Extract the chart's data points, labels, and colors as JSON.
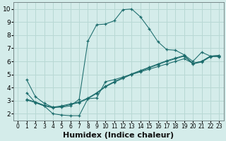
{
  "xlabel": "Humidex (Indice chaleur)",
  "bg_color": "#d4ecea",
  "grid_color": "#b8d8d4",
  "line_color": "#1a6b6b",
  "xlim": [
    -0.5,
    23.5
  ],
  "ylim": [
    1.5,
    10.5
  ],
  "xticks": [
    0,
    1,
    2,
    3,
    4,
    5,
    6,
    7,
    8,
    9,
    10,
    11,
    12,
    13,
    14,
    15,
    16,
    17,
    18,
    19,
    20,
    21,
    22,
    23
  ],
  "yticks": [
    2,
    3,
    4,
    5,
    6,
    7,
    8,
    9,
    10
  ],
  "line1_x": [
    1,
    2,
    3,
    4,
    5,
    6,
    7,
    8,
    9,
    10,
    11,
    12,
    13,
    14,
    15,
    16,
    17,
    18,
    19,
    20,
    21,
    22,
    23
  ],
  "line1_y": [
    4.6,
    3.3,
    2.8,
    2.5,
    2.5,
    2.6,
    3.1,
    7.55,
    8.8,
    8.85,
    9.1,
    9.95,
    10.0,
    9.4,
    8.5,
    7.5,
    6.9,
    6.85,
    6.5,
    6.0,
    6.7,
    6.4,
    6.35
  ],
  "line2_x": [
    1,
    2,
    3,
    4,
    5,
    6,
    7,
    8,
    9,
    10,
    11,
    12,
    13,
    14,
    15,
    16,
    17,
    18,
    19,
    20,
    21,
    22,
    23
  ],
  "line2_y": [
    3.6,
    2.85,
    2.6,
    2.0,
    1.9,
    1.85,
    1.85,
    3.15,
    3.2,
    4.45,
    4.6,
    4.8,
    5.0,
    5.2,
    5.4,
    5.6,
    5.8,
    6.0,
    6.2,
    5.85,
    6.0,
    6.4,
    6.45
  ],
  "line3_x": [
    1,
    2,
    3,
    4,
    5,
    6,
    7,
    8,
    9,
    10,
    11,
    12,
    13,
    14,
    15,
    16,
    17,
    18,
    19,
    20,
    21,
    22,
    23
  ],
  "line3_y": [
    3.1,
    2.9,
    2.65,
    2.5,
    2.6,
    2.75,
    2.9,
    3.2,
    3.6,
    4.1,
    4.45,
    4.75,
    5.05,
    5.3,
    5.55,
    5.8,
    6.05,
    6.25,
    6.45,
    5.85,
    6.0,
    6.4,
    6.45
  ],
  "line4_x": [
    1,
    2,
    3,
    4,
    5,
    6,
    7,
    8,
    9,
    10,
    11,
    12,
    13,
    14,
    15,
    16,
    17,
    18,
    19,
    20,
    21,
    22,
    23
  ],
  "line4_y": [
    3.05,
    2.85,
    2.6,
    2.45,
    2.55,
    2.7,
    2.85,
    3.15,
    3.55,
    4.05,
    4.4,
    4.7,
    5.0,
    5.25,
    5.5,
    5.75,
    6.0,
    6.2,
    6.4,
    5.8,
    5.95,
    6.35,
    6.4
  ],
  "xlabel_fontsize": 8
}
